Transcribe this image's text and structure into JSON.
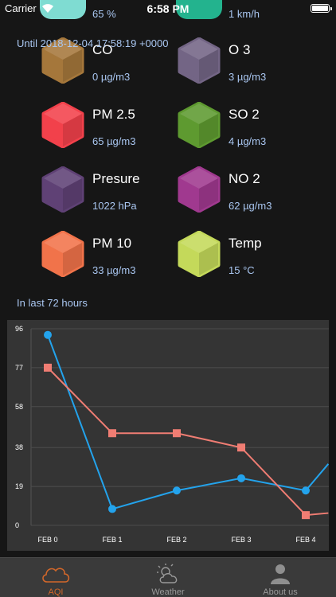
{
  "status_bar": {
    "carrier": "Carrier",
    "time": "6:58 PM"
  },
  "colors": {
    "accent": "#d2672a",
    "series_a": "#23a3ec",
    "series_b": "#f07d73",
    "value_text": "#a9c6f0"
  },
  "partial_row": [
    {
      "value": "65 %",
      "color": "#7fdcd2"
    },
    {
      "value": "1 km/h",
      "color": "#23b38e"
    }
  ],
  "until_text": "Until 2018-12-04 17:58:19 +0000",
  "metrics": [
    {
      "name": "CO",
      "value": "0 µg/m3",
      "color": "#a5773b"
    },
    {
      "name": "O 3",
      "value": "3 µg/m3",
      "color": "#736585"
    },
    {
      "name": "PM 2.5",
      "value": "65 µg/m3",
      "color": "#f2414b"
    },
    {
      "name": "SO 2",
      "value": "4 µg/m3",
      "color": "#5e9a30"
    },
    {
      "name": "Presure",
      "value": "1022 hPa",
      "color": "#5f4175"
    },
    {
      "name": "NO 2",
      "value": "62 µg/m3",
      "color": "#a0398f"
    },
    {
      "name": "PM 10",
      "value": "33 µg/m3",
      "color": "#f1734a"
    },
    {
      "name": "Temp",
      "value": "15 °C",
      "color": "#c4d95a"
    }
  ],
  "chart_caption": "In last 72 hours",
  "chart_data": {
    "type": "line",
    "categories": [
      "FEB 0",
      "FEB 1",
      "FEB 2",
      "FEB 3",
      "FEB 4"
    ],
    "yticks": [
      "96",
      "77",
      "58",
      "38",
      "19",
      "0"
    ],
    "ylim": [
      0,
      96
    ],
    "grid": true,
    "series": [
      {
        "color": "#23a3ec",
        "marker": "circle",
        "x": [
          0,
          1,
          2,
          3,
          4,
          4.35
        ],
        "values": [
          93,
          8,
          17,
          23,
          17,
          30
        ]
      },
      {
        "color": "#f07d73",
        "marker": "square",
        "x": [
          0,
          1,
          2,
          3,
          4,
          4.35
        ],
        "values": [
          77,
          45,
          45,
          38,
          5,
          6
        ]
      }
    ]
  },
  "tabs": [
    {
      "label": "AQI",
      "icon": "cloud-icon",
      "active": true
    },
    {
      "label": "Weather",
      "icon": "sun-cloud-icon",
      "active": false
    },
    {
      "label": "About us",
      "icon": "person-icon",
      "active": false
    }
  ]
}
